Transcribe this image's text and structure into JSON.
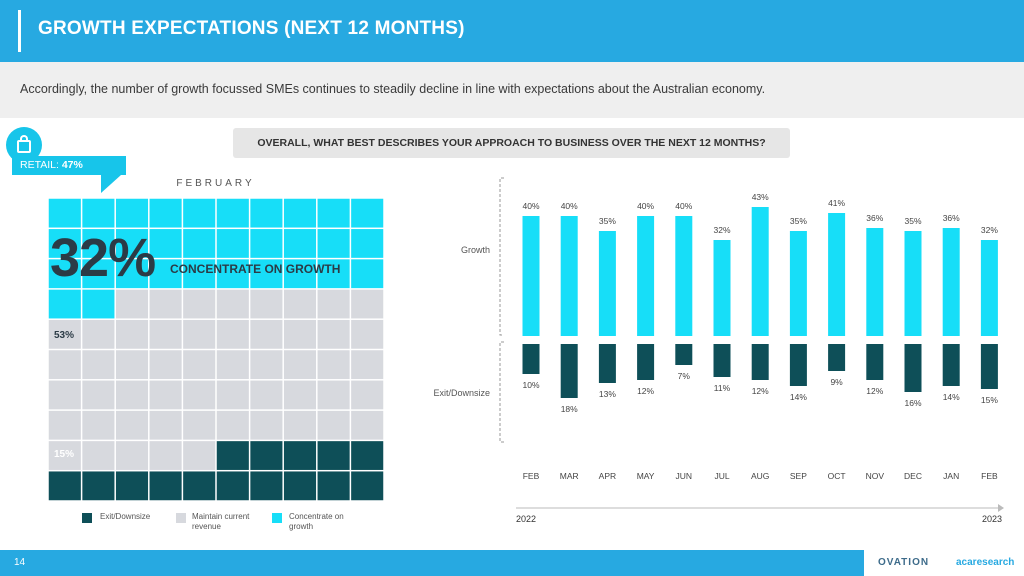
{
  "header": {
    "title": "GROWTH EXPECTATIONS (NEXT 12 MONTHS)"
  },
  "subtitle": "Accordingly, the number of growth focussed SMEs continues to steadily decline in line with expectations about the Australian economy.",
  "question": "OVERALL, WHAT BEST DESCRIBES YOUR APPROACH TO BUSINESS OVER THE NEXT 12 MONTHS?",
  "icon": "shopping-bag-icon",
  "retail": {
    "prefix": "RETAIL: ",
    "value": "47%"
  },
  "waffle": {
    "month_label": "FEBRUARY",
    "big_value": "32%",
    "big_caption": "CONCENTRATE ON GROWTH",
    "maintain_label": "53%",
    "exit_label": "15%"
  },
  "legend": [
    {
      "label": "Exit/Downsize",
      "color": "#0e4f58"
    },
    {
      "label": "Maintain current revenue",
      "color": "#d7d9de"
    },
    {
      "label": "Concentrate on growth",
      "color": "#17def8"
    }
  ],
  "chart_data": [
    {
      "type": "pie",
      "categories": [
        "Exit/Downsize",
        "Maintain current revenue",
        "Concentrate on growth"
      ],
      "values": [
        15,
        53,
        32
      ],
      "title": "FEBRUARY",
      "colors": [
        "#0e4f58",
        "#d7d9de",
        "#17def8"
      ]
    },
    {
      "type": "bar",
      "categories": [
        "FEB",
        "MAR",
        "APR",
        "MAY",
        "JUN",
        "JUL",
        "AUG",
        "SEP",
        "OCT",
        "NOV",
        "DEC",
        "JAN",
        "FEB"
      ],
      "series": [
        {
          "name": "Growth",
          "values": [
            40,
            40,
            35,
            40,
            40,
            32,
            43,
            35,
            41,
            36,
            35,
            36,
            32
          ],
          "color": "#17def8"
        },
        {
          "name": "Exit/Downsize",
          "values": [
            10,
            18,
            13,
            12,
            7,
            11,
            12,
            14,
            9,
            12,
            16,
            14,
            15
          ],
          "color": "#0e4f58"
        }
      ],
      "unit": "%",
      "years": {
        "start": "2022",
        "end": "2023"
      },
      "ylim": [
        0,
        45
      ]
    }
  ],
  "footer": {
    "page": "14",
    "logo1": "OVATION",
    "logo2": "acaresearch"
  }
}
